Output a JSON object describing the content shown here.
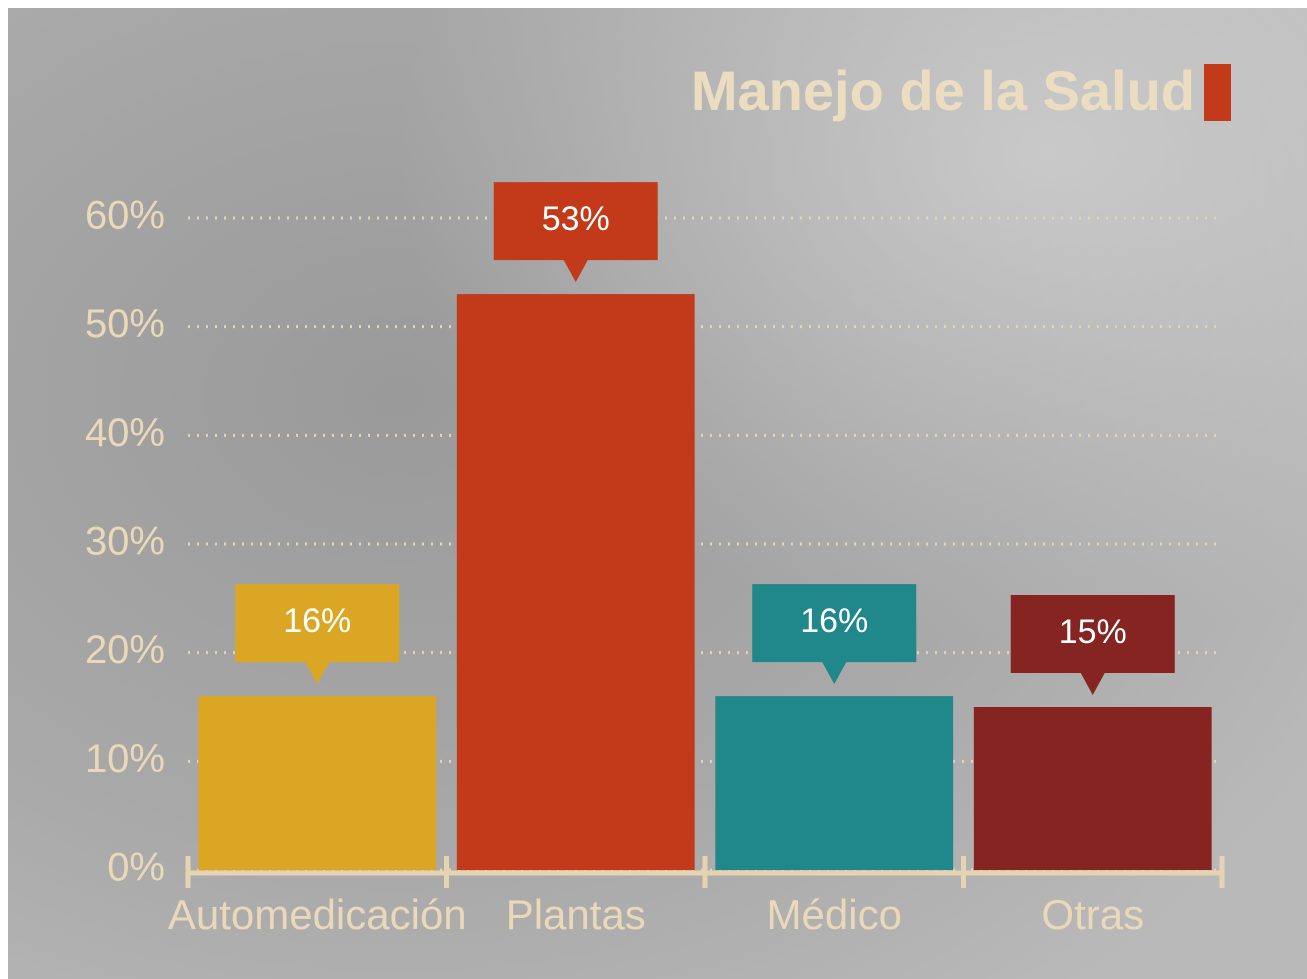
{
  "chart_data": {
    "type": "bar",
    "title": "Manejo de la Salud",
    "categories": [
      "Automedicación",
      "Plantas",
      "Médico",
      "Otras"
    ],
    "values": [
      16,
      53,
      16,
      15
    ],
    "value_labels": [
      "16%",
      "53%",
      "16%",
      "15%"
    ],
    "colors": [
      "#dba623",
      "#c23a19",
      "#20878a",
      "#852420"
    ],
    "ylim": [
      0,
      60
    ],
    "yticks": [
      {
        "value": 0,
        "label": "0%"
      },
      {
        "value": 10,
        "label": "10%"
      },
      {
        "value": 20,
        "label": "20%"
      },
      {
        "value": 30,
        "label": "30%"
      },
      {
        "value": 40,
        "label": "40%"
      },
      {
        "value": 50,
        "label": "50%"
      },
      {
        "value": 60,
        "label": "60%"
      }
    ],
    "grid": true
  }
}
